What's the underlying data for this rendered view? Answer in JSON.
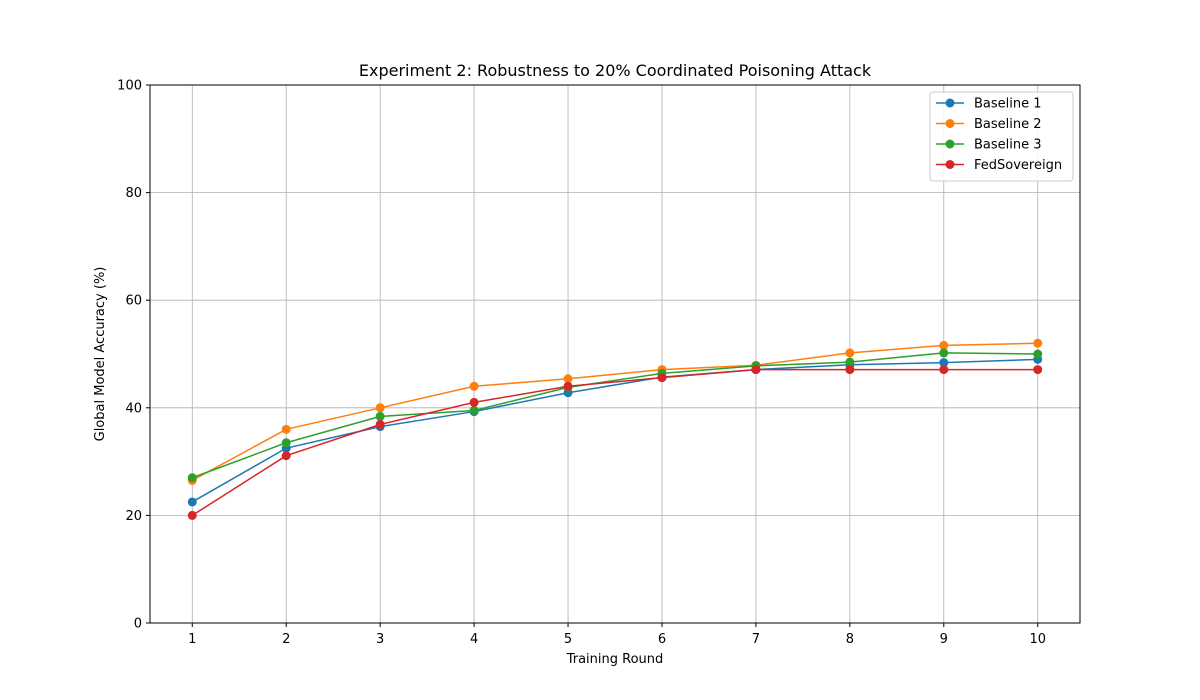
{
  "chart_data": {
    "type": "line",
    "title": "Experiment 2: Robustness to 20% Coordinated Poisoning Attack",
    "xlabel": "Training Round",
    "ylabel": "Global Model Accuracy (%)",
    "x": [
      1,
      2,
      3,
      4,
      5,
      6,
      7,
      8,
      9,
      10
    ],
    "xticks": [
      "1",
      "2",
      "3",
      "4",
      "5",
      "6",
      "7",
      "8",
      "9",
      "10"
    ],
    "yticks": [
      "0",
      "20",
      "40",
      "60",
      "80",
      "100"
    ],
    "ylim": [
      0,
      100
    ],
    "grid": true,
    "legend_position": "top-right",
    "series": [
      {
        "name": "Baseline 1",
        "color": "#1f77b4",
        "values": [
          22.5,
          32.5,
          36.5,
          39.3,
          42.8,
          45.7,
          47.1,
          48.0,
          48.4,
          49.0
        ]
      },
      {
        "name": "Baseline 2",
        "color": "#ff7f0e",
        "values": [
          26.5,
          36.0,
          40.0,
          44.0,
          45.4,
          47.1,
          47.9,
          50.2,
          51.6,
          52.0
        ]
      },
      {
        "name": "Baseline 3",
        "color": "#2ca02c",
        "values": [
          27.0,
          33.5,
          38.4,
          39.5,
          43.8,
          46.4,
          47.8,
          48.5,
          50.2,
          50.0
        ]
      },
      {
        "name": "FedSovereign",
        "color": "#d62728",
        "values": [
          20.0,
          31.1,
          36.9,
          41.0,
          44.0,
          45.6,
          47.1,
          47.1,
          47.1,
          47.1
        ]
      }
    ]
  }
}
